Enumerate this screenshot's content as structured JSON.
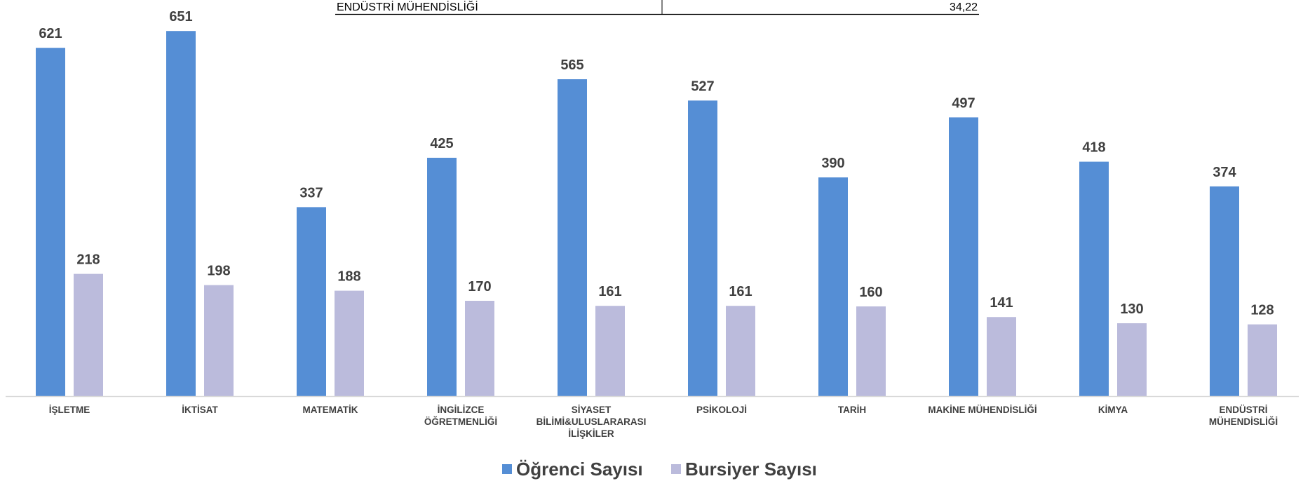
{
  "table_fragment": {
    "label": "ENDÜSTRİ MÜHENDİSLİĞİ",
    "value": "34,22"
  },
  "chart_data": {
    "type": "bar",
    "categories": [
      [
        "İŞLETME"
      ],
      [
        "İKTİSAT"
      ],
      [
        "MATEMATİK"
      ],
      [
        "İNGİLİZCE",
        "ÖĞRETMENLİĞİ"
      ],
      [
        "SİYASET",
        "BİLİMİ&ULUSLARARASI",
        "İLİŞKİLER"
      ],
      [
        "PSİKOLOJİ"
      ],
      [
        "TARİH"
      ],
      [
        "MAKİNE MÜHENDİSLİĞİ"
      ],
      [
        "KİMYA"
      ],
      [
        "ENDÜSTRİ",
        "MÜHENDİSLİĞİ"
      ]
    ],
    "series": [
      {
        "name": "Öğrenci Sayısı",
        "color": "#558ED5",
        "values": [
          621,
          651,
          337,
          425,
          565,
          527,
          390,
          497,
          418,
          374
        ]
      },
      {
        "name": "Bursiyer Sayısı",
        "color": "#BBBBDC",
        "values": [
          218,
          198,
          188,
          170,
          161,
          161,
          160,
          141,
          130,
          128
        ]
      }
    ],
    "ylim": [
      0,
      700
    ],
    "grid": false,
    "legend": "bottom",
    "data_labels": true
  }
}
